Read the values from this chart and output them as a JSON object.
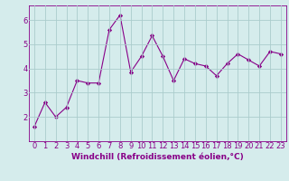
{
  "x": [
    0,
    1,
    2,
    3,
    4,
    5,
    6,
    7,
    8,
    9,
    10,
    11,
    12,
    13,
    14,
    15,
    16,
    17,
    18,
    19,
    20,
    21,
    22,
    23
  ],
  "y": [
    1.6,
    2.6,
    2.0,
    2.4,
    3.5,
    3.4,
    3.4,
    5.6,
    6.2,
    3.85,
    4.5,
    5.35,
    4.5,
    3.5,
    4.4,
    4.2,
    4.1,
    3.7,
    4.2,
    4.6,
    4.35,
    4.1,
    4.7,
    4.6
  ],
  "line_color": "#880088",
  "marker": "D",
  "marker_size": 2.2,
  "bg_color": "#d5ecec",
  "grid_color": "#aacccc",
  "xlabel": "Windchill (Refroidissement éolien,°C)",
  "ylim": [
    1.0,
    6.6
  ],
  "yticks": [
    2,
    3,
    4,
    5,
    6
  ],
  "xlim": [
    -0.5,
    23.5
  ],
  "xlabel_fontsize": 6.5,
  "tick_fontsize": 6.0
}
